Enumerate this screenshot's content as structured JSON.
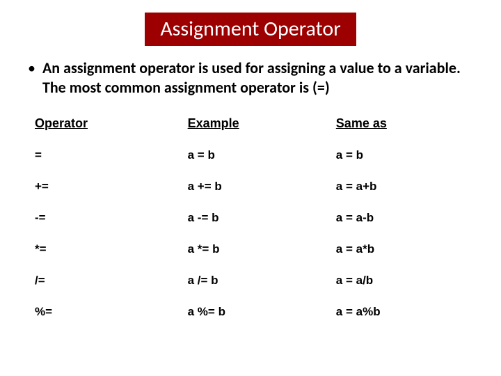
{
  "title": "Assignment Operator",
  "bullet": "An assignment operator is used for assigning a value to a variable. The most common assignment operator is (=)",
  "table": {
    "columns": [
      "Operator",
      "Example",
      "Same as"
    ],
    "rows": [
      [
        "=",
        "a = b",
        "a = b"
      ],
      [
        "+=",
        "a += b",
        "a = a+b"
      ],
      [
        "-=",
        "a -= b",
        "a = a-b"
      ],
      [
        "*=",
        "a *= b",
        "a = a*b"
      ],
      [
        "/=",
        "a /= b",
        "a = a/b"
      ],
      [
        "%=",
        "a %= b",
        "a = a%b"
      ]
    ]
  },
  "colors": {
    "banner_bg": "#9c0001",
    "banner_text": "#ffffff",
    "text": "#000000",
    "background": "#ffffff"
  },
  "fontsizes": {
    "title": 30,
    "bullet": 22,
    "table_header": 18,
    "table_cell": 17
  }
}
